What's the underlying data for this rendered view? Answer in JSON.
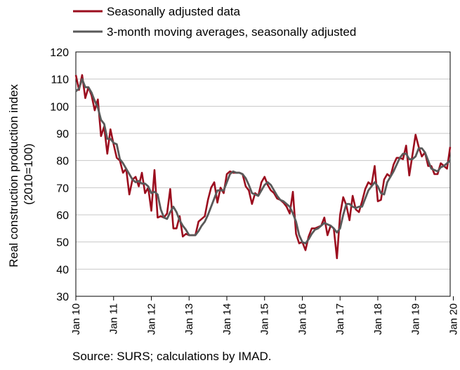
{
  "chart_data": {
    "type": "line",
    "ylabel": "Real construction production index (2010=100)",
    "ylim": [
      30,
      120
    ],
    "yticks": [
      "30",
      "40",
      "50",
      "60",
      "70",
      "80",
      "90",
      "100",
      "110",
      "120"
    ],
    "xticks": [
      "Jan 10",
      "Jan 11",
      "Jan 12",
      "Jan 13",
      "Jan 14",
      "Jan 15",
      "Jan 16",
      "Jan 17",
      "Jan 18",
      "Jan 19",
      "Jan 20"
    ],
    "x_start": "2010-01",
    "x_end": "2020-01",
    "grid": "horizontal",
    "legend_position": "top-left",
    "series": [
      {
        "name": "Seasonally adjusted data",
        "color": "#9b0d1e",
        "values": [
          111.5,
          106,
          111.5,
          103,
          107,
          104,
          98.5,
          102.5,
          89,
          92.5,
          82.5,
          91.5,
          86,
          81,
          80,
          75.5,
          77,
          67.5,
          73,
          74,
          70.5,
          75.5,
          68,
          70,
          61.5,
          76.5,
          59,
          59.5,
          59,
          60.5,
          69.5,
          55,
          55,
          59.5,
          52,
          53,
          52.5,
          52.5,
          52.5,
          57.5,
          58.5,
          59.5,
          65.5,
          70,
          72,
          64.5,
          70,
          68,
          75,
          76,
          75.5,
          75.5,
          75.5,
          75,
          70.5,
          69,
          64,
          68,
          67,
          72,
          74,
          71,
          69,
          68,
          66,
          65.5,
          64.5,
          63,
          60.5,
          68.5,
          53,
          49.5,
          50,
          47,
          52,
          55,
          55,
          55.5,
          56,
          59,
          52.5,
          56,
          55,
          44,
          60,
          66.5,
          63.5,
          58,
          67,
          62,
          61,
          65,
          69.5,
          72,
          71,
          78,
          65,
          65.5,
          73,
          75,
          74,
          78.5,
          81,
          81,
          80.5,
          85.5,
          74.5,
          82,
          89.5,
          85,
          81.5,
          83,
          78,
          78,
          75,
          75,
          79,
          78,
          77,
          85
        ]
      },
      {
        "name": "3-month moving averages, seasonally adjusted",
        "color": "#595959",
        "values": [
          105.5,
          106.5,
          110,
          107,
          107,
          105,
          102,
          99.5,
          95,
          93.5,
          88,
          88,
          86.5,
          86,
          80.5,
          79,
          77,
          75,
          73,
          72,
          72.5,
          71.5,
          71.5,
          70.5,
          68,
          68.5,
          67.5,
          62,
          59,
          58.5,
          61,
          63,
          61,
          58,
          56,
          54.5,
          52.5,
          52.5,
          52.5,
          54,
          56,
          57.5,
          60,
          63,
          66,
          69,
          69,
          69,
          72,
          75,
          76,
          75.5,
          75.5,
          75,
          73.5,
          71,
          68,
          67.5,
          67,
          69,
          71,
          72,
          71,
          69,
          67,
          65.5,
          65,
          64,
          63,
          60.5,
          57.5,
          52.5,
          50,
          49.5,
          51,
          53,
          54.5,
          55,
          56,
          57,
          56.5,
          56,
          55,
          53.5,
          55,
          60,
          64,
          64,
          63,
          62.5,
          63,
          63,
          66,
          69,
          70.5,
          72,
          70.5,
          68,
          67.5,
          72,
          74,
          76,
          78.5,
          81,
          82.5,
          82.5,
          80.5,
          80.5,
          81.5,
          84.5,
          84.5,
          83,
          80,
          77,
          76.5,
          76,
          77.5,
          78,
          79,
          80
        ]
      }
    ]
  },
  "source": "Source: SURS; calculations by IMAD."
}
